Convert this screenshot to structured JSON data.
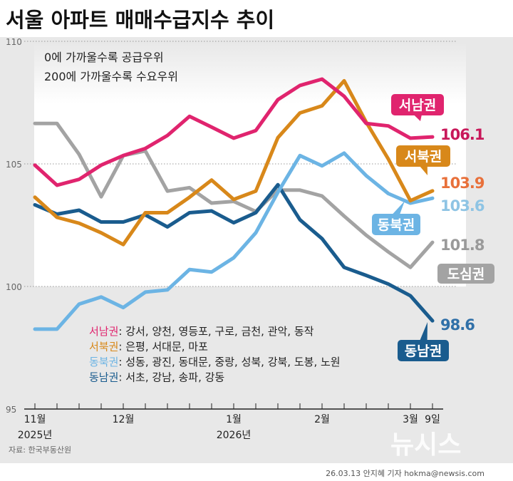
{
  "title": "서울 아파트 매매수급지수 추이",
  "note": [
    "0에 가까울수록 공급우위",
    "200에 가까울수록 수요우위"
  ],
  "source": "자료: 한국부동산원",
  "credit": "26.03.13 안지혜 기자 hokma@newsis.com",
  "watermark": "뉴시스",
  "legend_districts": [
    {
      "name": "서남권",
      "districts": ": 강서, 양천, 영등포, 구로, 금천, 관악, 동작",
      "color": "#e0246e"
    },
    {
      "name": "서북권",
      "districts": ": 은평, 서대문, 마포",
      "color": "#d8881a"
    },
    {
      "name": "동북권",
      "districts": ": 성동, 광진, 동대문, 중랑, 성북, 강북, 도봉, 노원",
      "color": "#6cb4e4"
    },
    {
      "name": "동남권",
      "districts": ": 서초, 강남, 송파, 강동",
      "color": "#1a5c8e"
    }
  ],
  "chart_data": {
    "type": "line",
    "title": "서울 아파트 매매수급지수 추이",
    "ylim": [
      95,
      110
    ],
    "yticks": [
      "95",
      "100",
      "105",
      "110"
    ],
    "x_tick_labels": [
      {
        "index": 0,
        "label": "11월",
        "year": "2025년"
      },
      {
        "index": 4,
        "label": "12월"
      },
      {
        "index": 9,
        "label": "1월",
        "year": "2026년"
      },
      {
        "index": 13,
        "label": "2월"
      },
      {
        "index": 17,
        "label": "3월"
      },
      {
        "index": 18,
        "label": "9일"
      }
    ],
    "point_count": 19,
    "grid": "horizontal dotted",
    "series": [
      {
        "name": "도심권",
        "color": "#a3a3a3",
        "label_color": "#9a9a9a",
        "end_label": "101.8",
        "values": [
          106.65,
          106.65,
          105.39,
          103.66,
          105.34,
          105.53,
          103.89,
          104.03,
          103.4,
          103.47,
          103.06,
          103.93,
          103.93,
          103.69,
          102.87,
          102.09,
          101.41,
          100.78,
          101.8
        ]
      },
      {
        "name": "동남권",
        "color": "#1a5c8e",
        "label_color": "#3070a8",
        "end_label": "98.6",
        "values": [
          103.33,
          102.95,
          103.11,
          102.63,
          102.63,
          102.92,
          102.43,
          103.01,
          103.08,
          102.6,
          103.01,
          104.15,
          102.72,
          101.95,
          100.78,
          100.45,
          100.1,
          99.62,
          98.6
        ]
      },
      {
        "name": "동북권",
        "color": "#6cb4e4",
        "label_color": "#8ec4e4",
        "end_label": "103.6",
        "values": [
          98.26,
          98.26,
          99.28,
          99.57,
          99.14,
          99.77,
          99.86,
          100.69,
          100.59,
          101.17,
          102.19,
          103.84,
          105.34,
          104.92,
          105.44,
          104.52,
          103.79,
          103.4,
          103.6
        ]
      },
      {
        "name": "서북권",
        "color": "#d8881a",
        "label_color": "#e8703a",
        "end_label": "103.9",
        "values": [
          103.64,
          102.82,
          102.58,
          102.19,
          101.71,
          103.01,
          103.01,
          103.64,
          104.34,
          103.55,
          103.89,
          106.07,
          107.08,
          107.37,
          108.39,
          106.7,
          105.2,
          103.5,
          103.9
        ]
      },
      {
        "name": "서남권",
        "color": "#e0246e",
        "label_color": "#c8185a",
        "end_label": "106.1",
        "values": [
          104.95,
          104.13,
          104.37,
          104.95,
          105.34,
          105.63,
          106.16,
          106.94,
          106.5,
          106.05,
          106.36,
          107.62,
          108.2,
          108.46,
          107.76,
          106.65,
          106.55,
          106.05,
          106.1
        ]
      }
    ]
  }
}
